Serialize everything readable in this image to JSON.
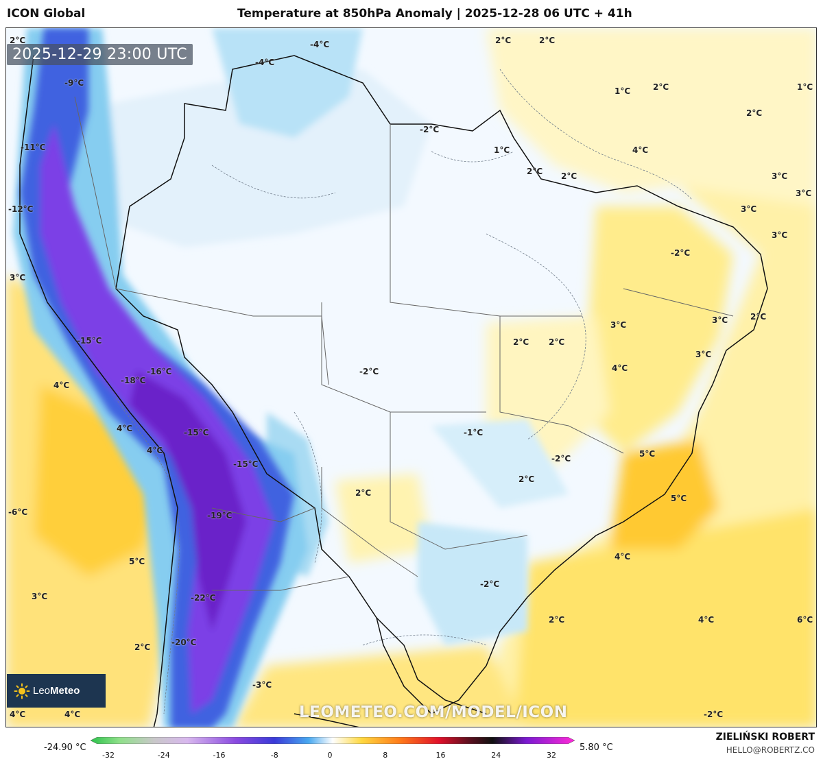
{
  "header": {
    "model": "ICON Global",
    "title": "Temperature at 850hPa Anomaly | 2025-12-28 06 UTC + 41h"
  },
  "valid_time": "2025-12-29 23:00 UTC",
  "watermark": "LEOMETEO.COM/MODEL/ICON",
  "logo": {
    "text_light": "Leo",
    "text_bold": "Meteo",
    "icon": "sun-logo-icon"
  },
  "author": {
    "name": "ZIELIŃSKI ROBERT",
    "email": "HELLO@ROBERTZ.CO"
  },
  "colorbar": {
    "min_label": "-24.90 °C",
    "max_label": "5.80 °C",
    "ticks": [
      "-32",
      "-24",
      "-16",
      "-8",
      "0",
      "8",
      "16",
      "24",
      "32"
    ]
  },
  "labels": [
    "2°C",
    "-4°C",
    "-4°C",
    "2°C",
    "2°C",
    "-9°C",
    "1°C",
    "2°C",
    "1°C",
    "2°C",
    "-11°C",
    "-2°C",
    "4°C",
    "1°C",
    "2°C",
    "2°C",
    "3°C",
    "-12°C",
    "3°C",
    "3°C",
    "3°C",
    "-2°C",
    "3°C",
    "2°C",
    "3°C",
    "-15°C",
    "2°C",
    "2°C",
    "3°C",
    "-16°C",
    "-18°C",
    "4°C",
    "-2°C",
    "4°C",
    "3°C",
    "4°C",
    "-15°C",
    "-1°C",
    "4°C",
    "5°C",
    "-15°C",
    "-2°C",
    "2°C",
    "2°C",
    "5°C",
    "-6°C",
    "-19°C",
    "4°C",
    "5°C",
    "-2°C",
    "3°C",
    "-22°C",
    "2°C",
    "4°C",
    "6°C",
    "2°C",
    "-20°C",
    "-3°C",
    "4°C",
    "4°C",
    "-2°C"
  ]
}
